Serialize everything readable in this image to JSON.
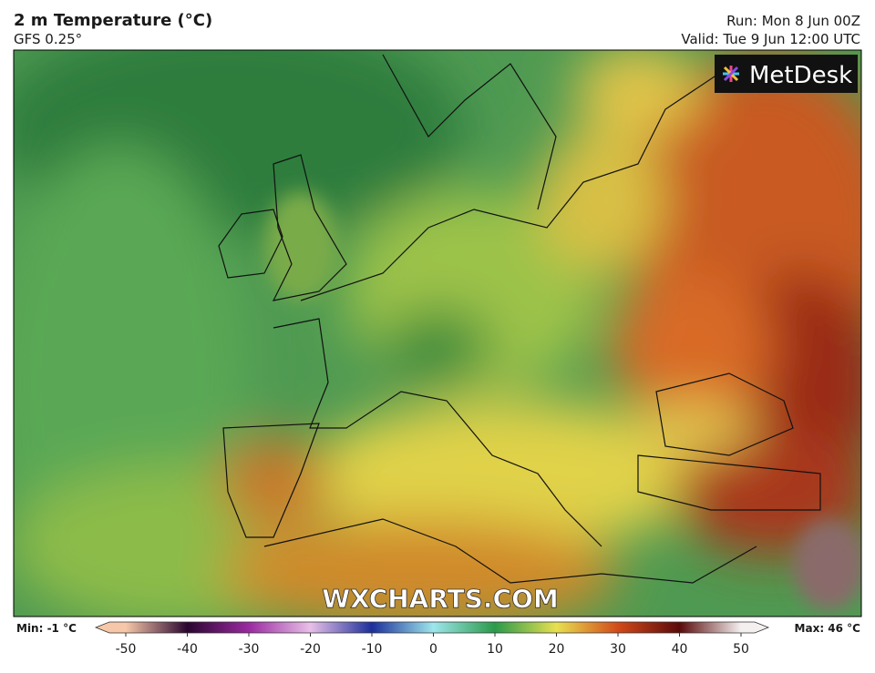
{
  "header": {
    "title": "2 m Temperature (°C)",
    "subtitle": "GFS 0.25°",
    "run": "Run: Mon 8 Jun 00Z",
    "valid": "Valid: Tue 9 Jun 12:00 UTC"
  },
  "map": {
    "logo": "MetDesk",
    "watermark": "WXCHARTS.COM"
  },
  "legend": {
    "min": "Min: -1 °C",
    "max": "Max: 46 °C",
    "ticks": [
      -50,
      -40,
      -30,
      -20,
      -10,
      0,
      10,
      20,
      30,
      40,
      50
    ]
  }
}
